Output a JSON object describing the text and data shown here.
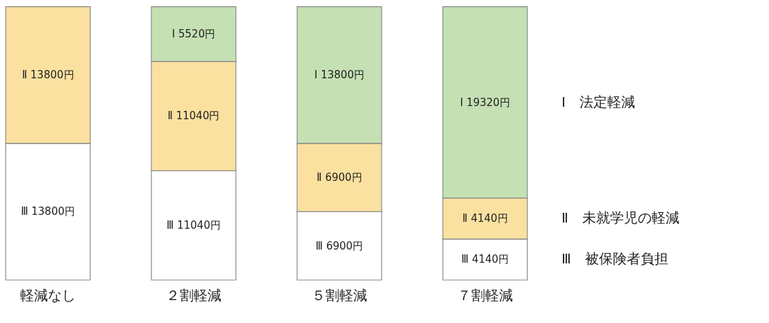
{
  "chart_data": {
    "type": "bar",
    "stacked": true,
    "tick_labels": "x",
    "categories": [
      "軽減なし",
      "２割軽減",
      "５割軽減",
      "７割軽減"
    ],
    "series": [
      {
        "name": "Ⅲ　被保険者負担",
        "color": "#ffffff",
        "values": [
          13800,
          11040,
          6900,
          4140
        ],
        "value_labels": [
          "Ⅲ 13800円",
          "Ⅲ 11040円",
          "Ⅲ 6900円",
          "Ⅲ 4140円"
        ]
      },
      {
        "name": "Ⅱ　未就学児の軽減",
        "color": "#fbe1a0",
        "values": [
          13800,
          11040,
          6900,
          4140
        ],
        "value_labels": [
          "Ⅱ 13800円",
          "Ⅱ 11040円",
          "Ⅱ 6900円",
          "Ⅱ 4140円"
        ]
      },
      {
        "name": "Ⅰ　法定軽減",
        "color": "#c5e0b3",
        "values": [
          null,
          5520,
          13800,
          19320
        ],
        "value_labels": [
          null,
          "Ⅰ 5520円",
          "Ⅰ 13800円",
          "Ⅰ 19320円"
        ]
      }
    ]
  }
}
